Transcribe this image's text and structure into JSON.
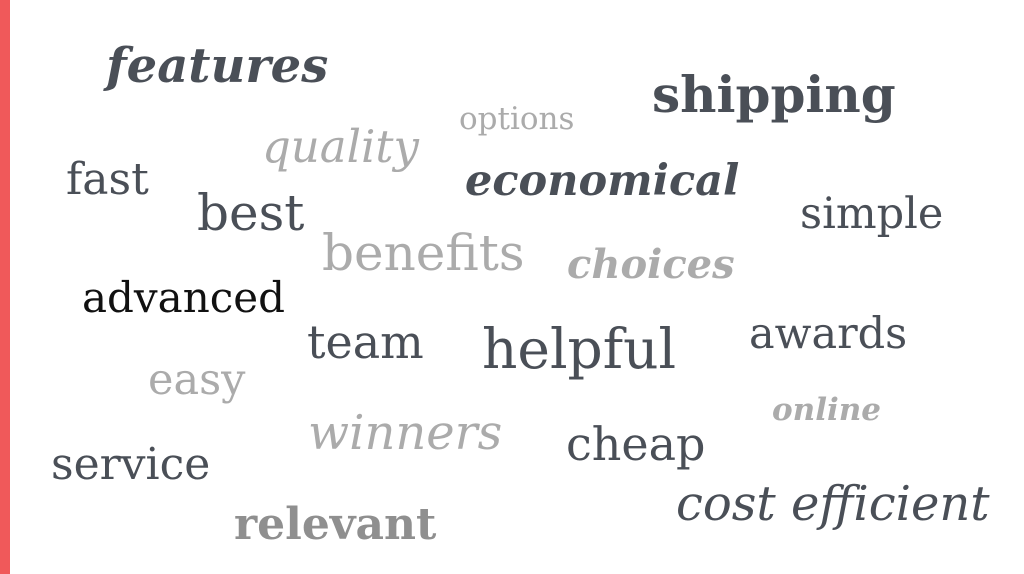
{
  "accent_color": "#f0595a",
  "words": {
    "features": "features",
    "shipping": "shipping",
    "options": "options",
    "quality": "quality",
    "fast": "fast",
    "economical": "economical",
    "best": "best",
    "simple": "simple",
    "benefits": "benefits",
    "choices": "choices",
    "advanced": "advanced",
    "awards": "awards",
    "team": "team",
    "helpful": "helpful",
    "easy": "easy",
    "online": "online",
    "winners": "winners",
    "cheap": "cheap",
    "service": "service",
    "cost_efficient": "cost efficient",
    "relevant": "relevant"
  }
}
